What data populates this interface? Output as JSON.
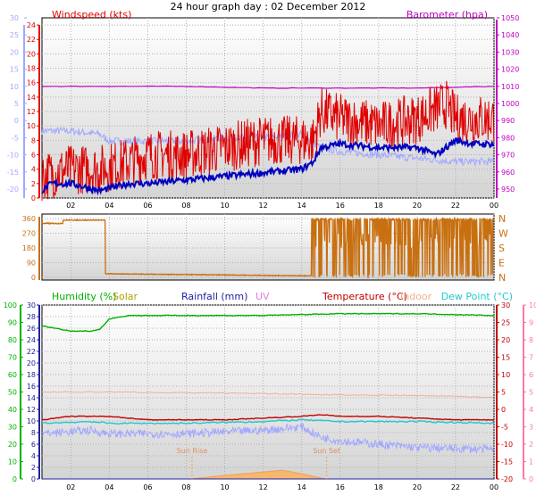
{
  "title": "24 hour graph day : 02 December 2012",
  "colors": {
    "wind": "#e00000",
    "wind_avg": "#0000c0",
    "baro": "#c000c0",
    "temp_axis": "#a0a8ff",
    "dir": "#c87010",
    "humidity": "#00b000",
    "solar": "#b0a000",
    "rain": "#2020a0",
    "uv": "#e080e0",
    "temperature": "#c00000",
    "indoor": "#f0b090",
    "dewpoint": "#20c8d0",
    "uv_axis": "#ff7aa0",
    "grid": "#b0b0b0"
  },
  "charts": {
    "wind": {
      "label_left": "Windspeed (kts)",
      "label_right": "Barometer (hpa)",
      "left_outer_ticks": [
        "30",
        "25",
        "20",
        "15",
        "10",
        "5",
        "0",
        "-5",
        "-10",
        "-15",
        "-20"
      ],
      "left_ticks": [
        "24",
        "22",
        "20",
        "18",
        "16",
        "14",
        "12",
        "10",
        "8",
        "6",
        "4",
        "2",
        "0"
      ],
      "right_ticks": [
        "1050",
        "1040",
        "1030",
        "1020",
        "1010",
        "1000",
        "990",
        "980",
        "970",
        "960",
        "950"
      ],
      "x_ticks": [
        "02",
        "04",
        "06",
        "08",
        "10",
        "12",
        "14",
        "16",
        "18",
        "20",
        "22",
        "00"
      ]
    },
    "direction": {
      "left_ticks": [
        "360",
        "270",
        "180",
        "90",
        "0"
      ],
      "right_ticks": [
        "N",
        "W",
        "S",
        "E",
        "N"
      ]
    },
    "weather": {
      "legend": {
        "humidity": "Humidity (%)",
        "solar": "Solar",
        "rain": "Rainfall (mm)",
        "uv": "UV",
        "temperature": "Temperature (°C)",
        "indoor": "Indoor",
        "dewpoint": "Dew Point (°C)"
      },
      "humidity_ticks": [
        "100",
        "90",
        "80",
        "70",
        "60",
        "50",
        "40",
        "30",
        "20",
        "10",
        "0"
      ],
      "rain_ticks": [
        "30",
        "28",
        "26",
        "24",
        "22",
        "20",
        "18",
        "16",
        "14",
        "12",
        "10",
        "8",
        "6",
        "4",
        "2",
        "0"
      ],
      "temp_ticks": [
        "30",
        "25",
        "20",
        "15",
        "10",
        "5",
        "0",
        "-5",
        "-10",
        "-15",
        "-20"
      ],
      "uv_ticks": [
        "10",
        "9",
        "8",
        "7",
        "6",
        "5",
        "4",
        "3",
        "2",
        "1",
        "0"
      ],
      "x_ticks": [
        "02",
        "04",
        "06",
        "08",
        "10",
        "12",
        "14",
        "16",
        "18",
        "20",
        "22",
        "00"
      ],
      "sun_rise_label": "Sun Rise",
      "sun_set_label": "Sun Set"
    }
  },
  "chart_data": [
    {
      "type": "line",
      "title": "24 hour graph day : 02 December 2012",
      "x_unit": "hour",
      "x_range": [
        0.5,
        24
      ],
      "series": [
        {
          "name": "Windspeed (kts)",
          "axis": "left",
          "ylim": [
            0,
            25
          ],
          "x": [
            0.5,
            2,
            3.5,
            5,
            6,
            8,
            10,
            12,
            13.5,
            14.6,
            15,
            16,
            18,
            20,
            21.5,
            22,
            23,
            24
          ],
          "y": [
            3,
            4,
            4,
            5,
            6,
            6,
            7,
            8,
            8,
            8,
            12,
            11,
            10,
            11,
            13,
            11,
            11,
            11
          ]
        },
        {
          "name": "Windspeed average",
          "axis": "left",
          "ylim": [
            0,
            25
          ],
          "x": [
            0.5,
            1,
            2,
            3.5,
            5,
            6,
            8,
            10,
            12,
            14,
            14.6,
            15,
            16,
            18,
            20,
            21,
            22,
            23,
            24
          ],
          "y": [
            1,
            2,
            2,
            1,
            2,
            2,
            2.5,
            3,
            3.5,
            4,
            5,
            7,
            7.5,
            7,
            7,
            6,
            8,
            7.5,
            7.5
          ]
        },
        {
          "name": "Barometer (hpa)",
          "axis": "right",
          "ylim": [
            950,
            1050
          ],
          "x": [
            0.5,
            4,
            8,
            12,
            16,
            20,
            24
          ],
          "y": [
            1010,
            1010,
            1010,
            1009,
            1009,
            1009,
            1010
          ]
        },
        {
          "name": "Temperature",
          "axis": "left_outer",
          "ylim": [
            -20,
            30
          ],
          "x": [
            0.5,
            2,
            3.5,
            4,
            6,
            8,
            10,
            12,
            14,
            15,
            16,
            18,
            20,
            22,
            24
          ],
          "y": [
            -3,
            -3,
            -4,
            -6,
            -6,
            -6,
            -5,
            -5,
            -4,
            -8,
            -9,
            -10,
            -11,
            -12,
            -12
          ]
        }
      ]
    },
    {
      "type": "line",
      "title": "",
      "x_unit": "hour",
      "x_range": [
        0.5,
        24
      ],
      "ylim": [
        0,
        360
      ],
      "series": [
        {
          "name": "",
          "x": [
            0.5,
            1.5,
            2.5,
            3.8,
            4.0,
            8,
            12,
            14.2,
            14.5,
            15,
            17,
            19,
            21,
            23,
            24
          ],
          "y": [
            330,
            330,
            350,
            350,
            20,
            20,
            15,
            10,
            180,
            350,
            350,
            360,
            180,
            350,
            0
          ]
        }
      ]
    },
    {
      "type": "line",
      "title": "",
      "x_unit": "hour",
      "x_range": [
        0.5,
        24
      ],
      "series": [
        {
          "name": "Humidity (%)",
          "axis": "humidity",
          "ylim": [
            0,
            100
          ],
          "x": [
            0.5,
            2,
            3,
            3.5,
            4,
            5,
            8,
            12,
            16,
            20,
            24
          ],
          "y": [
            88,
            85,
            85,
            86,
            92,
            94,
            94,
            94,
            95,
            95,
            94
          ]
        },
        {
          "name": "Temperature (°C)",
          "axis": "temp",
          "ylim": [
            -20,
            30
          ],
          "x": [
            0.5,
            2,
            4,
            6,
            8,
            10,
            12,
            14,
            15,
            16,
            18,
            20,
            22,
            24
          ],
          "y": [
            -3,
            -2,
            -2,
            -3,
            -3,
            -3,
            -2.5,
            -2,
            -1.5,
            -2,
            -2,
            -2.5,
            -3,
            -3
          ]
        },
        {
          "name": "Indoor",
          "axis": "temp",
          "ylim": [
            -20,
            30
          ],
          "x": [
            0.5,
            4,
            8,
            12,
            16,
            20,
            24
          ],
          "y": [
            5,
            5,
            4.8,
            4.5,
            4.2,
            4,
            3.5
          ]
        },
        {
          "name": "Dew Point (°C)",
          "axis": "temp",
          "ylim": [
            -20,
            30
          ],
          "x": [
            0.5,
            3,
            4,
            6,
            8,
            12,
            14,
            16,
            18,
            20,
            24
          ],
          "y": [
            -4,
            -3.5,
            -4,
            -4,
            -4,
            -3.5,
            -3,
            -3.5,
            -3.5,
            -3.5,
            -4
          ]
        },
        {
          "name": "Solar",
          "axis": "uv",
          "ylim": [
            0,
            10
          ],
          "x": [
            8.3,
            10,
            12,
            13,
            14,
            15.2
          ],
          "y": [
            0,
            0.2,
            0.4,
            0.5,
            0.3,
            0
          ]
        },
        {
          "name": "Rainfall (mm)",
          "axis": "rain",
          "ylim": [
            0,
            30
          ],
          "x": [
            0.5,
            24
          ],
          "y": [
            0,
            0
          ]
        }
      ],
      "events": [
        {
          "label": "Sun Rise",
          "x": 8.3
        },
        {
          "label": "Sun Set",
          "x": 15.3
        }
      ]
    }
  ]
}
